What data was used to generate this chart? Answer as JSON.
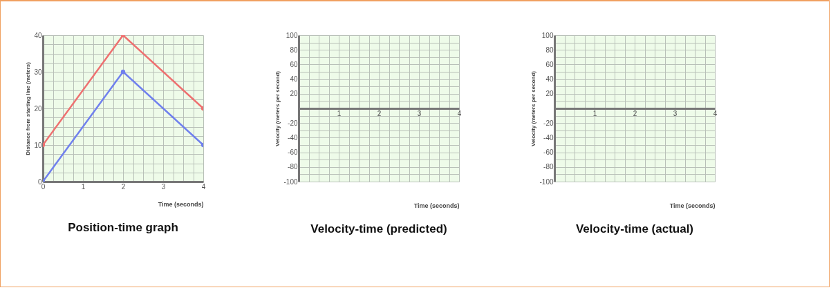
{
  "chart_data": [
    {
      "type": "line",
      "title": "Position-time graph",
      "xlabel": "Time (seconds)",
      "ylabel": "Distance from starting line (meters)",
      "x": [
        0,
        2,
        4
      ],
      "series": [
        {
          "color": "#ee7070",
          "values": [
            10,
            40,
            20
          ]
        },
        {
          "color": "#7080ee",
          "values": [
            0,
            30,
            10
          ]
        }
      ],
      "xlim": [
        0,
        4
      ],
      "ylim": [
        0,
        40
      ],
      "xticks": [
        0,
        {
          "value": 0.25,
          "label": null
        },
        {
          "value": 0.5,
          "label": null
        },
        {
          "value": 0.75,
          "label": null
        },
        1,
        {
          "value": 1.25,
          "label": null
        },
        {
          "value": 1.5,
          "label": null
        },
        {
          "value": 1.75,
          "label": null
        },
        2,
        {
          "value": 2.25,
          "label": null
        },
        {
          "value": 2.5,
          "label": null
        },
        {
          "value": 2.75,
          "label": null
        },
        3,
        {
          "value": 3.25,
          "label": null
        },
        {
          "value": 3.5,
          "label": null
        },
        {
          "value": 3.75,
          "label": null
        },
        4
      ],
      "yticks": [
        0,
        {
          "value": 2.5,
          "label": null
        },
        {
          "value": 5,
          "label": null
        },
        {
          "value": 7.5,
          "label": null
        },
        10,
        {
          "value": 12.5,
          "label": null
        },
        {
          "value": 15,
          "label": null
        },
        {
          "value": 17.5,
          "label": null
        },
        20,
        {
          "value": 22.5,
          "label": null
        },
        {
          "value": 25,
          "label": null
        },
        {
          "value": 27.5,
          "label": null
        },
        30,
        {
          "value": 32.5,
          "label": null
        },
        {
          "value": 35,
          "label": null
        },
        {
          "value": 37.5,
          "label": null
        },
        40
      ],
      "grid": true,
      "marker": "circle",
      "line_style": "solid"
    },
    {
      "type": "line",
      "title": "Velocity-time (predicted)",
      "xlabel": "Time (seconds)",
      "ylabel": "Velocity (meters per second)",
      "xlim": [
        0,
        4
      ],
      "ylim": [
        -100,
        100
      ],
      "xticks": [
        {
          "value": 0,
          "label": null
        },
        {
          "value": 0.25,
          "label": null
        },
        {
          "value": 0.5,
          "label": null
        },
        {
          "value": 0.75,
          "label": null
        },
        1,
        {
          "value": 1.25,
          "label": null
        },
        {
          "value": 1.5,
          "label": null
        },
        {
          "value": 1.75,
          "label": null
        },
        2,
        {
          "value": 2.25,
          "label": null
        },
        {
          "value": 2.5,
          "label": null
        },
        {
          "value": 2.75,
          "label": null
        },
        3,
        {
          "value": 3.25,
          "label": null
        },
        {
          "value": 3.5,
          "label": null
        },
        {
          "value": 3.75,
          "label": null
        },
        4
      ],
      "yticks": [
        -100,
        {
          "value": -90,
          "label": null
        },
        -80,
        {
          "value": -70,
          "label": null
        },
        -60,
        {
          "value": -50,
          "label": null
        },
        -40,
        {
          "value": -30,
          "label": null
        },
        -20,
        {
          "value": -10,
          "label": null
        },
        {
          "value": 0,
          "label": null
        },
        {
          "value": 10,
          "label": null
        },
        20,
        {
          "value": 30,
          "label": null
        },
        40,
        {
          "value": 50,
          "label": null
        },
        60,
        {
          "value": 70,
          "label": null
        },
        80,
        {
          "value": 90,
          "label": null
        },
        100
      ],
      "grid": true
    },
    {
      "type": "line",
      "title": "Velocity-time (actual)",
      "xlabel": "Time (seconds)",
      "ylabel": "Velocity (meters per second)",
      "xlim": [
        0,
        4
      ],
      "ylim": [
        -100,
        100
      ],
      "xticks": [
        {
          "value": 0,
          "label": null
        },
        {
          "value": 0.25,
          "label": null
        },
        {
          "value": 0.5,
          "label": null
        },
        {
          "value": 0.75,
          "label": null
        },
        1,
        {
          "value": 1.25,
          "label": null
        },
        {
          "value": 1.5,
          "label": null
        },
        {
          "value": 1.75,
          "label": null
        },
        2,
        {
          "value": 2.25,
          "label": null
        },
        {
          "value": 2.5,
          "label": null
        },
        {
          "value": 2.75,
          "label": null
        },
        3,
        {
          "value": 3.25,
          "label": null
        },
        {
          "value": 3.5,
          "label": null
        },
        {
          "value": 3.75,
          "label": null
        },
        4
      ],
      "yticks": [
        -100,
        {
          "value": -90,
          "label": null
        },
        -80,
        {
          "value": -70,
          "label": null
        },
        -60,
        {
          "value": -50,
          "label": null
        },
        -40,
        {
          "value": -30,
          "label": null
        },
        -20,
        {
          "value": -10,
          "label": null
        },
        {
          "value": 0,
          "label": null
        },
        {
          "value": 10,
          "label": null
        },
        20,
        {
          "value": 30,
          "label": null
        },
        40,
        {
          "value": 50,
          "label": null
        },
        60,
        {
          "value": 70,
          "label": null
        },
        80,
        {
          "value": 90,
          "label": null
        },
        100
      ],
      "grid": true
    }
  ]
}
